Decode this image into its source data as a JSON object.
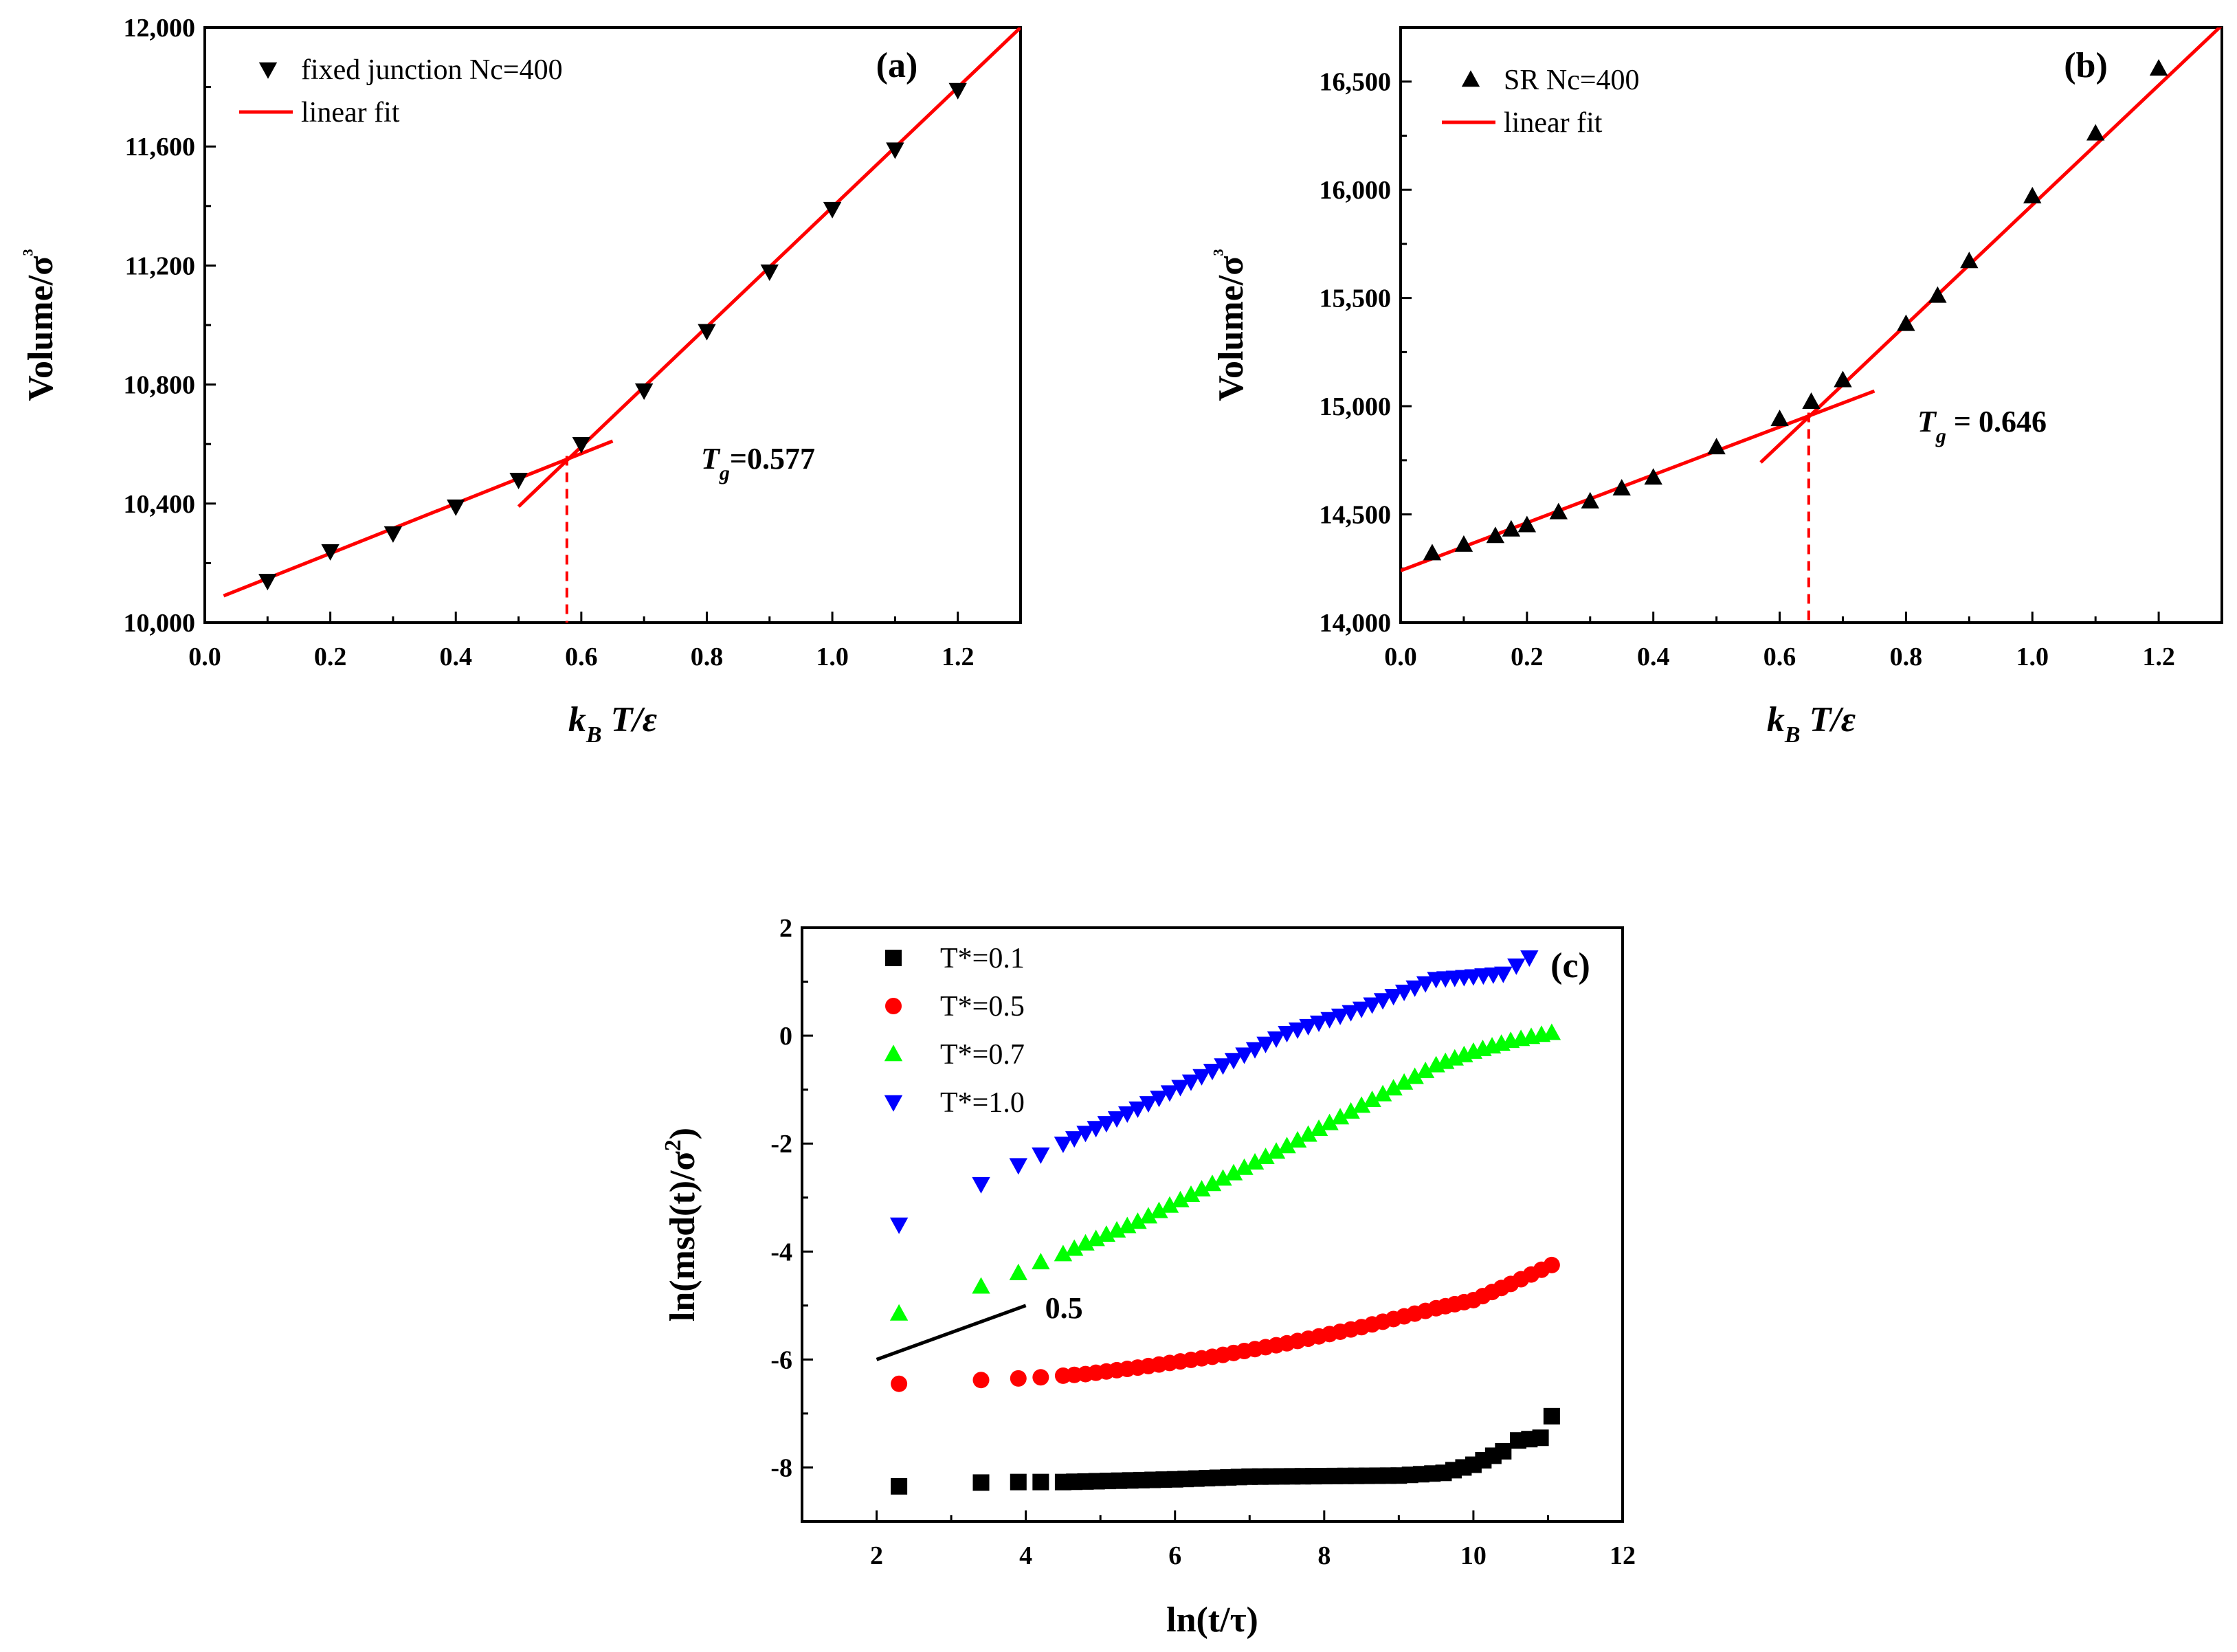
{
  "chart_data": [
    {
      "id": "a",
      "type": "scatter",
      "panel_label": "(a)",
      "xlabel": "k_B T/ε",
      "ylabel": "Volume/σ³",
      "xlim": [
        0.0,
        1.3
      ],
      "ylim": [
        10000,
        12000
      ],
      "xticks": [
        "0.0",
        "0.2",
        "0.4",
        "0.6",
        "0.8",
        "1.0",
        "1.2"
      ],
      "yticks": [
        "10,000",
        "10,400",
        "10,800",
        "11,200",
        "11,600",
        "12,000"
      ],
      "xtick_values": [
        0.0,
        0.2,
        0.4,
        0.6,
        0.8,
        1.0,
        1.2
      ],
      "ytick_values": [
        10000,
        10400,
        10800,
        11200,
        11600,
        12000
      ],
      "marker": "triangle-down",
      "color": "#000000",
      "fit_color": "#ff0000",
      "legend": [
        {
          "label": "fixed junction Nc=400",
          "kind": "marker"
        },
        {
          "label": "linear fit",
          "kind": "line"
        }
      ],
      "series": [
        {
          "name": "fixed junction Nc=400",
          "x": [
            0.1,
            0.2,
            0.3,
            0.4,
            0.5,
            0.6,
            0.7,
            0.8,
            0.9,
            1.0,
            1.1,
            1.2
          ],
          "y": [
            10140,
            10240,
            10300,
            10390,
            10480,
            10600,
            10780,
            10980,
            11180,
            11390,
            11590,
            11790
          ]
        }
      ],
      "fit_lines": [
        {
          "x": [
            0.03,
            0.65
          ],
          "y": [
            10090,
            10610
          ]
        },
        {
          "x": [
            0.5,
            1.3
          ],
          "y": [
            10390,
            12000
          ]
        }
      ],
      "tg_value": 0.577,
      "tg_y": 10560,
      "annotation": {
        "symbol": "T",
        "sub": "g",
        "text": "=0.577"
      }
    },
    {
      "id": "b",
      "type": "scatter",
      "panel_label": "(b)",
      "xlabel": "k_B T/ε",
      "ylabel": "Volume/σ³",
      "xlim": [
        0.0,
        1.3
      ],
      "ylim": [
        14000,
        16750
      ],
      "xticks": [
        "0.0",
        "0.2",
        "0.4",
        "0.6",
        "0.8",
        "1.0",
        "1.2"
      ],
      "yticks": [
        "14,000",
        "14,500",
        "15,000",
        "15,500",
        "16,000",
        "16,500"
      ],
      "xtick_values": [
        0.0,
        0.2,
        0.4,
        0.6,
        0.8,
        1.0,
        1.2
      ],
      "ytick_values": [
        14000,
        14500,
        15000,
        15500,
        16000,
        16500
      ],
      "marker": "triangle-up",
      "color": "#000000",
      "fit_color": "#ff0000",
      "legend": [
        {
          "label": "SR Nc=400",
          "kind": "marker"
        },
        {
          "label": "linear fit",
          "kind": "line"
        }
      ],
      "series": [
        {
          "name": "SR Nc=400",
          "x": [
            0.05,
            0.1,
            0.15,
            0.175,
            0.2,
            0.25,
            0.3,
            0.35,
            0.4,
            0.5,
            0.6,
            0.65,
            0.7,
            0.8,
            0.85,
            0.9,
            1.0,
            1.1,
            1.2
          ],
          "y": [
            14320,
            14360,
            14400,
            14430,
            14450,
            14510,
            14560,
            14620,
            14670,
            14810,
            14940,
            15020,
            15120,
            15380,
            15510,
            15670,
            15970,
            16260,
            16560
          ]
        }
      ],
      "fit_lines": [
        {
          "x": [
            0.0,
            0.75
          ],
          "y": [
            14240,
            15070
          ]
        },
        {
          "x": [
            0.57,
            1.3
          ],
          "y": [
            14740,
            16760
          ]
        }
      ],
      "tg_value": 0.646,
      "tg_y": 14970,
      "annotation": {
        "symbol": "T",
        "sub": "g",
        "text": " = 0.646"
      }
    },
    {
      "id": "c",
      "type": "scatter",
      "panel_label": "(c)",
      "xlabel": "ln(t/τ)",
      "ylabel": "ln(msd(t)/σ²)",
      "xlim": [
        1,
        12
      ],
      "ylim": [
        -9,
        2
      ],
      "xticks": [
        "2",
        "4",
        "6",
        "8",
        "10",
        "12"
      ],
      "yticks": [
        "-8",
        "-6",
        "-4",
        "-2",
        "0",
        "2"
      ],
      "xtick_values": [
        2,
        4,
        6,
        8,
        10,
        12
      ],
      "ytick_values": [
        -8,
        -6,
        -4,
        -2,
        0,
        2
      ],
      "legend": [
        {
          "label": "T*=0.1",
          "marker": "square",
          "color": "#000000"
        },
        {
          "label": "T*=0.5",
          "marker": "circle",
          "color": "#ff0000"
        },
        {
          "label": "T*=0.7",
          "marker": "triangle-up",
          "color": "#00ff00"
        },
        {
          "label": "T*=1.0",
          "marker": "triangle-down",
          "color": "#0000ff"
        }
      ],
      "series": [
        {
          "name": "T*=0.1",
          "marker": "square",
          "color": "#000000",
          "x": [
            2.3,
            3.4,
            3.9,
            4.2,
            4.5,
            4.8,
            6,
            7,
            8,
            9,
            9.6,
            10,
            10.4,
            10.6,
            10.9,
            11.05
          ],
          "y": [
            -8.35,
            -8.28,
            -8.27,
            -8.27,
            -8.27,
            -8.26,
            -8.22,
            -8.17,
            -8.16,
            -8.15,
            -8.1,
            -7.95,
            -7.7,
            -7.5,
            -7.45,
            -7.05
          ]
        },
        {
          "name": "T*=0.5",
          "marker": "circle",
          "color": "#ff0000",
          "x": [
            2.3,
            3.4,
            3.9,
            4.2,
            4.5,
            4.8,
            5.5,
            6.5,
            7.5,
            8.5,
            9.5,
            10,
            10.5,
            11.05
          ],
          "y": [
            -6.45,
            -6.38,
            -6.35,
            -6.33,
            -6.3,
            -6.27,
            -6.15,
            -5.95,
            -5.7,
            -5.4,
            -5.05,
            -4.9,
            -4.6,
            -4.25
          ]
        },
        {
          "name": "T*=0.7",
          "marker": "triangle-up",
          "color": "#00ff00",
          "x": [
            2.3,
            3.4,
            3.9,
            4.2,
            4.5,
            4.8,
            5.5,
            6.5,
            7.5,
            8.5,
            9.5,
            10,
            10.5,
            11.05
          ],
          "y": [
            -5.15,
            -4.65,
            -4.4,
            -4.2,
            -4.05,
            -3.85,
            -3.45,
            -2.75,
            -2.05,
            -1.3,
            -0.55,
            -0.3,
            -0.1,
            0.05
          ]
        },
        {
          "name": "T*=1.0",
          "marker": "triangle-down",
          "color": "#0000ff",
          "x": [
            2.3,
            3.4,
            3.9,
            4.2,
            4.5,
            4.8,
            5.5,
            6.5,
            7.5,
            8.5,
            9.5,
            10,
            10.4,
            10.75
          ],
          "y": [
            -3.5,
            -2.75,
            -2.4,
            -2.2,
            -2.0,
            -1.8,
            -1.35,
            -0.65,
            0.05,
            0.5,
            1.05,
            1.1,
            1.15,
            1.45
          ]
        }
      ],
      "guide_line": {
        "x": [
          2.0,
          4.0
        ],
        "y": [
          -6.0,
          -5.0
        ],
        "label": "0.5"
      }
    }
  ]
}
